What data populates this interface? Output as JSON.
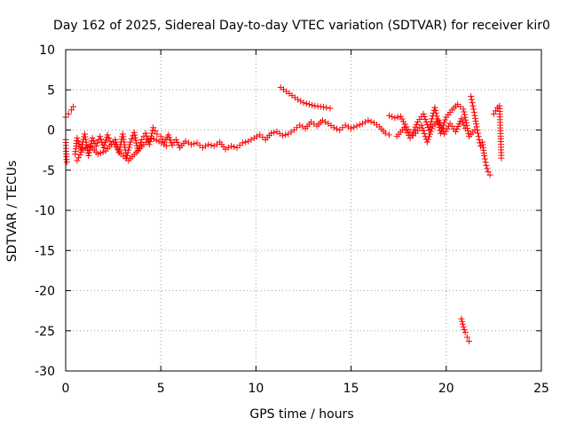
{
  "chart_data": {
    "type": "scatter",
    "title": "Day 162 of 2025, Sidereal Day-to-day VTEC variation (SDTVAR) for receiver kir0",
    "xlabel": "GPS time / hours",
    "ylabel": "SDTVAR / TECUs",
    "xlim": [
      0,
      25
    ],
    "ylim": [
      -30,
      10
    ],
    "xticks": [
      "0",
      "5",
      "10",
      "15",
      "20",
      "25"
    ],
    "yticks": [
      "10",
      "5",
      "0",
      "-5",
      "-10",
      "-15",
      "-20",
      "-25",
      "-30"
    ],
    "grid": true,
    "marker": "+",
    "color": "#ff0000",
    "segments": [
      {
        "x": [
          0.0,
          0.15,
          0.3,
          0.4
        ],
        "y": [
          1.6,
          2.0,
          2.5,
          2.9
        ]
      },
      {
        "x": [
          0.0,
          0.03,
          0.06
        ],
        "y": [
          -1.2,
          -3.0,
          -4.0
        ]
      },
      {
        "x": [
          0.5,
          0.6,
          0.8,
          1.0,
          1.2,
          1.4,
          1.6,
          1.8,
          2.0,
          2.2,
          2.4,
          2.6,
          2.8,
          3.0,
          3.2,
          3.4,
          3.6,
          3.8,
          4.0,
          4.2,
          4.4,
          4.6,
          4.8,
          5.0,
          5.2,
          5.4,
          5.6,
          5.8,
          6.0,
          6.3,
          6.6,
          6.9,
          7.2,
          7.5,
          7.8,
          8.1,
          8.4,
          8.7,
          9.0,
          9.3,
          9.6,
          9.9,
          10.2,
          10.5,
          10.8,
          11.1,
          11.4,
          11.7,
          12.0,
          12.3,
          12.6,
          12.9,
          13.2,
          13.5,
          13.8,
          14.1,
          14.4,
          14.7,
          15.0,
          15.3,
          15.6,
          15.9,
          16.2,
          16.5,
          16.8,
          17.0
        ],
        "y": [
          -3.0,
          -1.0,
          -2.5,
          -0.5,
          -3.2,
          -1.0,
          -2.0,
          -0.8,
          -2.2,
          -0.6,
          -1.8,
          -1.2,
          -2.8,
          -0.5,
          -3.5,
          -1.5,
          -0.3,
          -2.6,
          -1.2,
          -0.4,
          -1.8,
          0.3,
          -0.5,
          -0.8,
          -1.5,
          -0.6,
          -1.9,
          -1.2,
          -2.2,
          -1.4,
          -1.8,
          -1.6,
          -2.2,
          -1.8,
          -2.0,
          -1.5,
          -2.4,
          -2.0,
          -2.2,
          -1.6,
          -1.4,
          -1.0,
          -0.6,
          -1.2,
          -0.4,
          -0.2,
          -0.7,
          -0.5,
          0.0,
          0.6,
          0.2,
          1.0,
          0.5,
          1.2,
          0.8,
          0.3,
          0.0,
          0.6,
          0.2,
          0.5,
          0.8,
          1.2,
          0.9,
          0.4,
          -0.4,
          -0.6
        ]
      },
      {
        "x": [
          0.6,
          0.9,
          1.3,
          1.7,
          2.1,
          2.5,
          2.9,
          3.3,
          3.7,
          4.1,
          4.5,
          4.9,
          5.3
        ],
        "y": [
          -3.8,
          -2.4,
          -2.0,
          -3.0,
          -2.6,
          -1.5,
          -3.0,
          -3.8,
          -2.8,
          -1.8,
          -1.0,
          -1.4,
          -2.0
        ]
      },
      {
        "x": [
          11.3,
          11.6,
          11.9,
          12.2,
          12.5,
          12.8,
          13.1,
          13.4,
          13.7,
          13.9
        ],
        "y": [
          5.3,
          4.8,
          4.3,
          3.8,
          3.4,
          3.2,
          3.0,
          2.9,
          2.8,
          2.7
        ]
      },
      {
        "x": [
          17.0,
          17.3,
          17.6,
          17.9,
          18.2,
          18.5,
          18.8,
          19.1,
          19.4,
          19.7,
          20.0,
          20.3,
          20.6,
          20.9,
          21.2,
          21.5
        ],
        "y": [
          1.8,
          1.5,
          1.7,
          0.4,
          -0.6,
          1.0,
          2.0,
          0.0,
          2.8,
          -0.4,
          1.6,
          2.5,
          3.2,
          2.6,
          -0.8,
          0.0
        ]
      },
      {
        "x": [
          17.4,
          17.8,
          18.1,
          18.4,
          18.7,
          19.0,
          19.3,
          19.6,
          19.9,
          20.2,
          20.5,
          20.8,
          21.0
        ],
        "y": [
          -0.8,
          0.3,
          -1.0,
          -0.4,
          0.6,
          -1.5,
          0.5,
          1.2,
          -0.5,
          0.8,
          -0.2,
          1.4,
          0.2
        ]
      },
      {
        "x": [
          21.3,
          21.4,
          21.5,
          21.6,
          21.7,
          21.8
        ],
        "y": [
          4.2,
          3.0,
          1.8,
          0.4,
          -0.8,
          -2.0
        ]
      },
      {
        "x": [
          21.9,
          22.0,
          22.1,
          22.2,
          22.3
        ],
        "y": [
          -1.5,
          -3.2,
          -4.4,
          -5.2,
          -5.6
        ]
      },
      {
        "x": [
          22.5,
          22.6,
          22.7,
          22.8,
          22.9
        ],
        "y": [
          2.0,
          2.4,
          2.8,
          3.0,
          -3.5
        ]
      },
      {
        "x": [
          20.8,
          20.9,
          21.0,
          21.1,
          21.2
        ],
        "y": [
          -23.5,
          -24.5,
          -25.2,
          -25.8,
          -26.3
        ]
      }
    ]
  }
}
